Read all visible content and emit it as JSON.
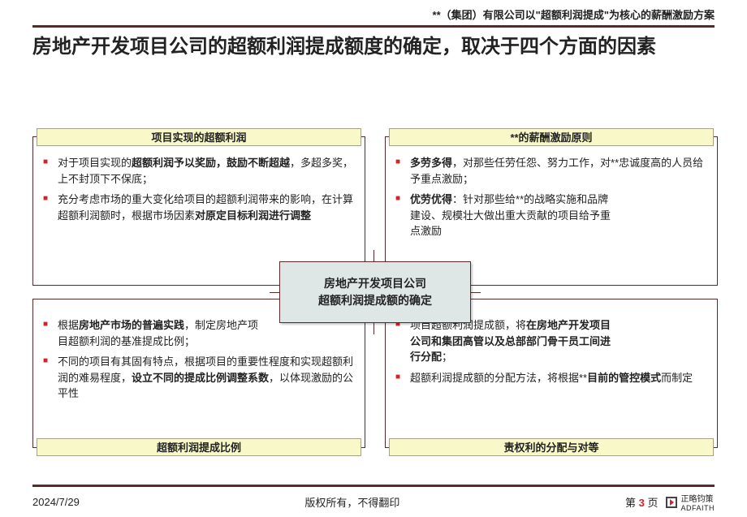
{
  "header": "**（集团）有限公司以\"超额利润提成\"为核心的薪酬激励方案",
  "title": "房地产开发项目公司的超额利润提成额度的确定，取决于四个方面的因素",
  "center_box": "房地产开发项目公司\n超额利润提成额的确定",
  "colors": {
    "rule": "#5a2a2a",
    "label_bg": "#f9f8c8",
    "center_bg": "#dfe6e6",
    "bullet_red": "#d2232a",
    "text": "#222222"
  },
  "quadrants": {
    "top_left": {
      "label": "项目实现的超额利润",
      "label_pos": "top",
      "bullets": [
        "对于项目实现的<b>超额利润予以奖励，鼓励不断超越</b>，多超多奖，上不封顶下不保底；",
        "充分考虑市场的重大变化给项目的超额利润带来的影响，在计算超额利润额时，根据市场因素<b>对原定目标利润进行调整</b>"
      ]
    },
    "top_right": {
      "label": "**的薪酬激励原则",
      "label_pos": "top",
      "bullets": [
        "<b>多劳多得</b>，对那些任劳任怨、努力工作，对**忠诚度高的人员给予重点激励；",
        "<b>优劳优得</b>：针对那些给**的战略实施和品牌建设、规模壮大做出重大贡献的项目给予重点激励"
      ]
    },
    "bottom_left": {
      "label": "超额利润提成比例",
      "label_pos": "bottom",
      "bullets": [
        "根据<b>房地产市场的普遍实践</b>，制定房地产项目超额利润的基准提成比例；",
        "不同的项目有其固有特点，根据项目的重要性程度和实现超额利润的难易程度，<b>设立不同的提成比例调整系数</b>，以体现激励的公平性"
      ]
    },
    "bottom_right": {
      "label": "责权利的分配与对等",
      "label_pos": "bottom",
      "bullets": [
        "项目超额利润提成额，将<b>在房地产开发项目公司和集团高管以及总部部门骨干员工间进行分配</b>；",
        "超额利润提成额的分配方法，将根据**<b>目前的管控模式</b>而制定"
      ]
    }
  },
  "footer": {
    "date": "2024/7/29",
    "copyright": "版权所有，不得翻印",
    "page_prefix": "第 ",
    "page_num": "3",
    "page_suffix": " 页",
    "logo_cn": "正略钧策",
    "logo_en": "ADFAITH"
  }
}
